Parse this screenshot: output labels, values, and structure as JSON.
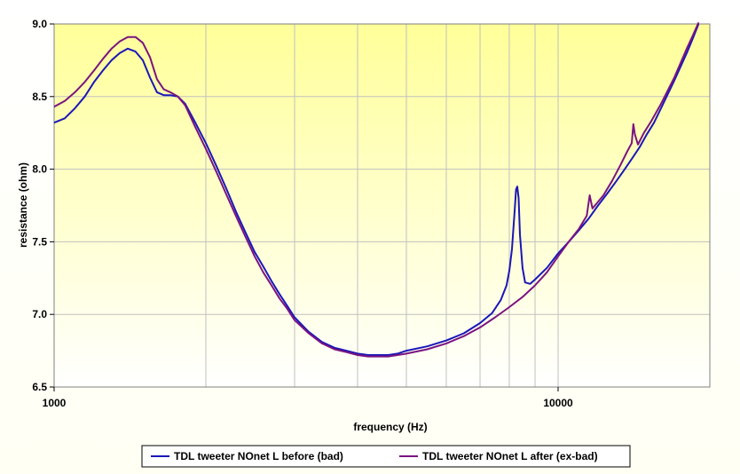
{
  "chart_data": {
    "type": "line",
    "title": "",
    "xlabel": "frequency (Hz)",
    "ylabel": "resistance (ohm)",
    "xscale": "log",
    "xlim": [
      1000,
      20000
    ],
    "ylim": [
      6.5,
      9.0
    ],
    "x_tick_labels": [
      "1000",
      "10000"
    ],
    "y_tick_labels": [
      "6.5",
      "7.0",
      "7.5",
      "8.0",
      "8.5",
      "9.0"
    ],
    "grid": true,
    "legend_position": "bottom",
    "series": [
      {
        "name": "TDL tweeter NOnet L before (bad)",
        "color": "#1a17b8",
        "points": [
          [
            1000,
            8.32
          ],
          [
            1050,
            8.35
          ],
          [
            1100,
            8.42
          ],
          [
            1150,
            8.5
          ],
          [
            1200,
            8.6
          ],
          [
            1250,
            8.68
          ],
          [
            1300,
            8.75
          ],
          [
            1350,
            8.8
          ],
          [
            1400,
            8.83
          ],
          [
            1450,
            8.81
          ],
          [
            1500,
            8.75
          ],
          [
            1550,
            8.63
          ],
          [
            1600,
            8.53
          ],
          [
            1650,
            8.51
          ],
          [
            1700,
            8.51
          ],
          [
            1760,
            8.5
          ],
          [
            1820,
            8.45
          ],
          [
            1900,
            8.33
          ],
          [
            2000,
            8.18
          ],
          [
            2100,
            8.02
          ],
          [
            2200,
            7.86
          ],
          [
            2300,
            7.7
          ],
          [
            2400,
            7.56
          ],
          [
            2500,
            7.43
          ],
          [
            2600,
            7.33
          ],
          [
            2700,
            7.23
          ],
          [
            2800,
            7.14
          ],
          [
            2900,
            7.06
          ],
          [
            3000,
            6.98
          ],
          [
            3200,
            6.88
          ],
          [
            3400,
            6.81
          ],
          [
            3600,
            6.77
          ],
          [
            3800,
            6.75
          ],
          [
            4000,
            6.73
          ],
          [
            4200,
            6.72
          ],
          [
            4400,
            6.72
          ],
          [
            4600,
            6.72
          ],
          [
            4800,
            6.73
          ],
          [
            5000,
            6.75
          ],
          [
            5500,
            6.78
          ],
          [
            6000,
            6.82
          ],
          [
            6500,
            6.87
          ],
          [
            7000,
            6.94
          ],
          [
            7400,
            7.01
          ],
          [
            7700,
            7.1
          ],
          [
            7900,
            7.2
          ],
          [
            8000,
            7.3
          ],
          [
            8100,
            7.45
          ],
          [
            8200,
            7.72
          ],
          [
            8250,
            7.86
          ],
          [
            8300,
            7.88
          ],
          [
            8350,
            7.8
          ],
          [
            8400,
            7.55
          ],
          [
            8500,
            7.32
          ],
          [
            8600,
            7.22
          ],
          [
            8800,
            7.21
          ],
          [
            9000,
            7.24
          ],
          [
            9500,
            7.32
          ],
          [
            10000,
            7.42
          ],
          [
            10500,
            7.5
          ],
          [
            11000,
            7.58
          ],
          [
            11500,
            7.66
          ],
          [
            12000,
            7.75
          ],
          [
            12500,
            7.83
          ],
          [
            13000,
            7.91
          ],
          [
            13500,
            7.99
          ],
          [
            14000,
            8.07
          ],
          [
            14500,
            8.15
          ],
          [
            15000,
            8.24
          ],
          [
            15500,
            8.32
          ],
          [
            16000,
            8.42
          ],
          [
            17000,
            8.61
          ],
          [
            18000,
            8.8
          ],
          [
            18500,
            8.9
          ],
          [
            19000,
            9.0
          ]
        ]
      },
      {
        "name": "TDL tweeter NOnet L after (ex-bad)",
        "color": "#7a1480",
        "points": [
          [
            1000,
            8.43
          ],
          [
            1050,
            8.47
          ],
          [
            1100,
            8.53
          ],
          [
            1150,
            8.6
          ],
          [
            1200,
            8.68
          ],
          [
            1250,
            8.76
          ],
          [
            1300,
            8.83
          ],
          [
            1350,
            8.88
          ],
          [
            1400,
            8.91
          ],
          [
            1450,
            8.91
          ],
          [
            1500,
            8.87
          ],
          [
            1550,
            8.77
          ],
          [
            1600,
            8.62
          ],
          [
            1650,
            8.55
          ],
          [
            1700,
            8.53
          ],
          [
            1760,
            8.5
          ],
          [
            1820,
            8.44
          ],
          [
            1900,
            8.3
          ],
          [
            2000,
            8.14
          ],
          [
            2100,
            7.98
          ],
          [
            2200,
            7.82
          ],
          [
            2300,
            7.67
          ],
          [
            2400,
            7.53
          ],
          [
            2500,
            7.4
          ],
          [
            2600,
            7.29
          ],
          [
            2700,
            7.2
          ],
          [
            2800,
            7.11
          ],
          [
            2900,
            7.04
          ],
          [
            3000,
            6.96
          ],
          [
            3200,
            6.87
          ],
          [
            3400,
            6.8
          ],
          [
            3600,
            6.76
          ],
          [
            3800,
            6.74
          ],
          [
            4000,
            6.72
          ],
          [
            4200,
            6.71
          ],
          [
            4400,
            6.71
          ],
          [
            4600,
            6.71
          ],
          [
            4800,
            6.72
          ],
          [
            5000,
            6.73
          ],
          [
            5500,
            6.76
          ],
          [
            6000,
            6.8
          ],
          [
            6500,
            6.85
          ],
          [
            7000,
            6.91
          ],
          [
            7500,
            6.98
          ],
          [
            8000,
            7.05
          ],
          [
            8500,
            7.12
          ],
          [
            9000,
            7.2
          ],
          [
            9500,
            7.29
          ],
          [
            10000,
            7.4
          ],
          [
            10500,
            7.5
          ],
          [
            11000,
            7.59
          ],
          [
            11400,
            7.68
          ],
          [
            11550,
            7.82
          ],
          [
            11700,
            7.73
          ],
          [
            11900,
            7.76
          ],
          [
            12300,
            7.82
          ],
          [
            12800,
            7.92
          ],
          [
            13300,
            8.03
          ],
          [
            13700,
            8.12
          ],
          [
            14000,
            8.18
          ],
          [
            14100,
            8.31
          ],
          [
            14200,
            8.24
          ],
          [
            14400,
            8.17
          ],
          [
            14800,
            8.25
          ],
          [
            15300,
            8.33
          ],
          [
            16000,
            8.45
          ],
          [
            17000,
            8.63
          ],
          [
            18000,
            8.83
          ],
          [
            18500,
            8.92
          ],
          [
            19000,
            9.01
          ]
        ]
      }
    ]
  }
}
